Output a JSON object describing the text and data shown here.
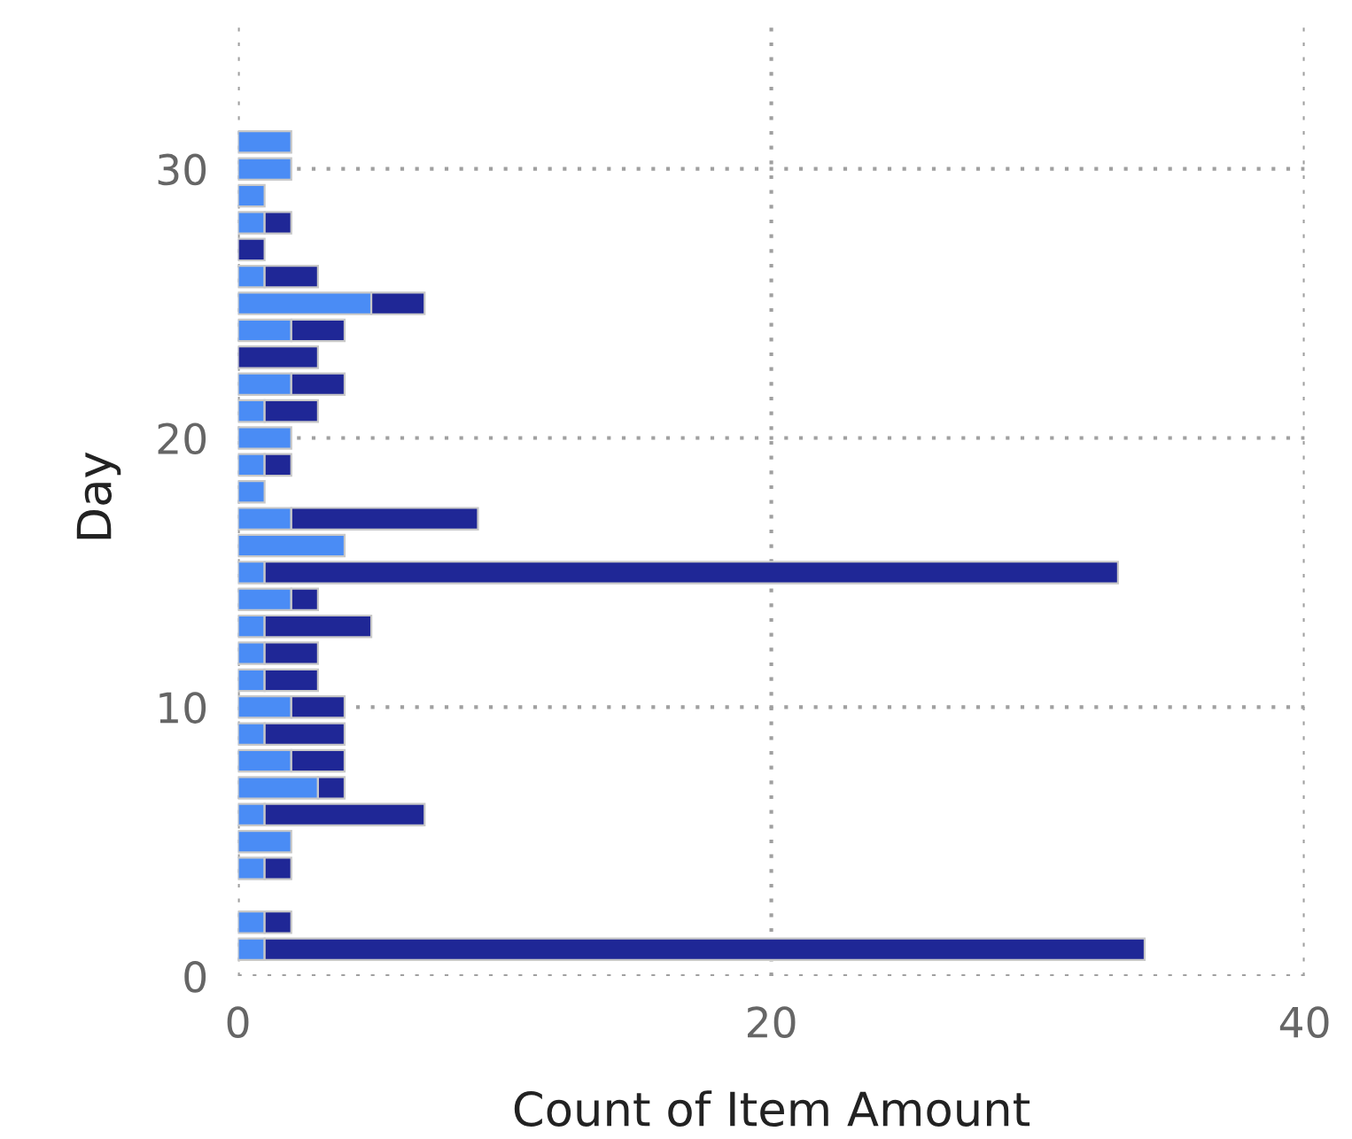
{
  "chart_data": {
    "type": "bar",
    "orientation": "horizontal",
    "stacked": true,
    "xlabel": "Count of Item Amount",
    "ylabel": "Day",
    "x": [
      1,
      2,
      4,
      5,
      6,
      7,
      8,
      9,
      10,
      11,
      12,
      13,
      14,
      15,
      16,
      17,
      18,
      19,
      20,
      21,
      22,
      23,
      24,
      25,
      26,
      27,
      28,
      29,
      30,
      31
    ],
    "series": [
      {
        "color": "#4a8cf5",
        "values": [
          1,
          1,
          1,
          2,
          1,
          3,
          2,
          1,
          2,
          1,
          1,
          1,
          2,
          1,
          4,
          2,
          1,
          1,
          2,
          1,
          2,
          null,
          2,
          5,
          1,
          null,
          1,
          1,
          2,
          2
        ]
      },
      {
        "color": "#1f2796",
        "values": [
          33,
          1,
          1,
          null,
          6,
          1,
          2,
          3,
          2,
          2,
          2,
          4,
          1,
          32,
          null,
          7,
          null,
          1,
          null,
          2,
          2,
          3,
          2,
          2,
          2,
          1,
          1,
          null,
          null,
          null
        ]
      }
    ],
    "xlim": [
      0,
      40
    ],
    "xticks": [
      0,
      20,
      40
    ],
    "ylim": [
      0,
      35.6
    ],
    "yticks": [
      0,
      10,
      20,
      30
    ],
    "grid": true,
    "line_style": "dotted"
  }
}
